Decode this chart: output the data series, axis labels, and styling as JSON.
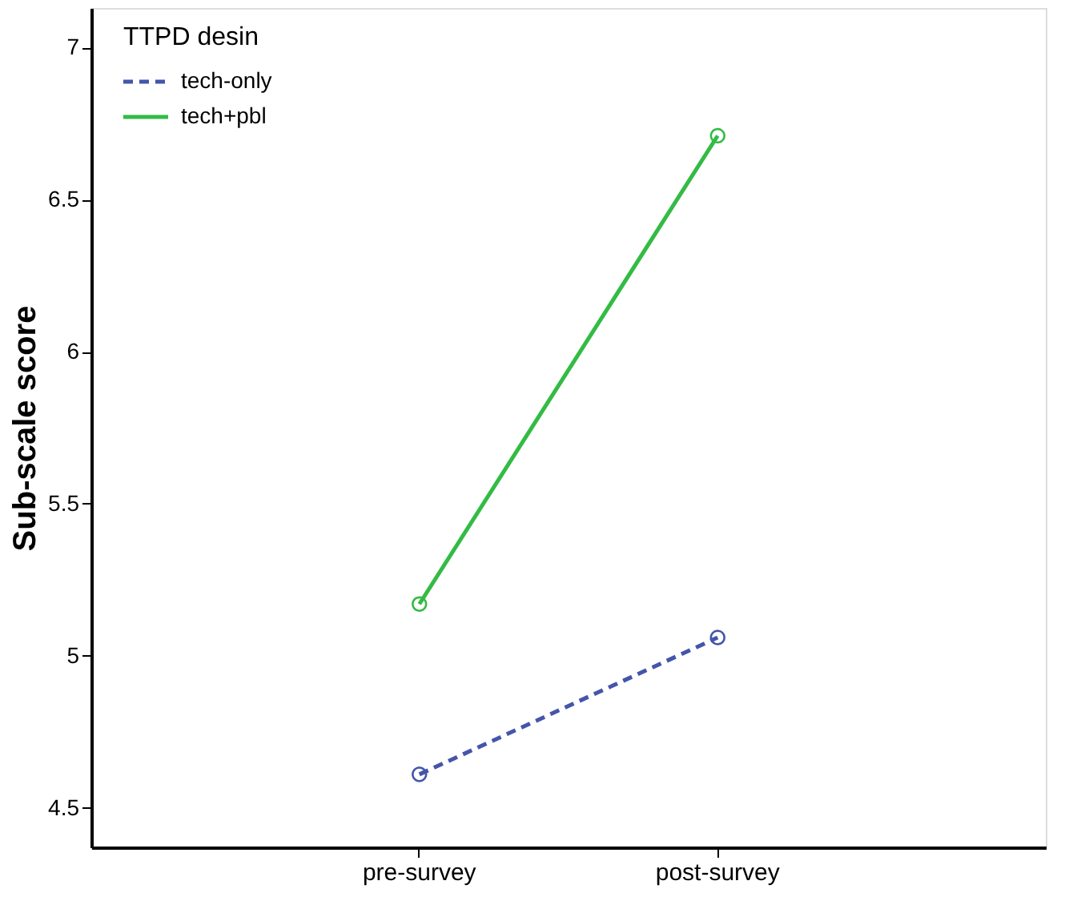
{
  "chart_data": {
    "type": "line",
    "ylabel": "Sub-scale score",
    "legend_title": "TTPD desin",
    "categories": [
      "pre-survey",
      "post-survey"
    ],
    "series": [
      {
        "name": "tech-only",
        "color": "#4455aa",
        "values": [
          4.61,
          5.06
        ],
        "line_style": "dashed"
      },
      {
        "name": "tech+pbl",
        "color": "#33bb44",
        "values": [
          5.17,
          6.71
        ],
        "line_style": "solid"
      }
    ],
    "ylim": [
      4.37,
      7.13
    ],
    "yticks": [
      4.5,
      5,
      5.5,
      6,
      6.5,
      7
    ],
    "grid": false,
    "legend": "top left",
    "marker": "circle"
  }
}
